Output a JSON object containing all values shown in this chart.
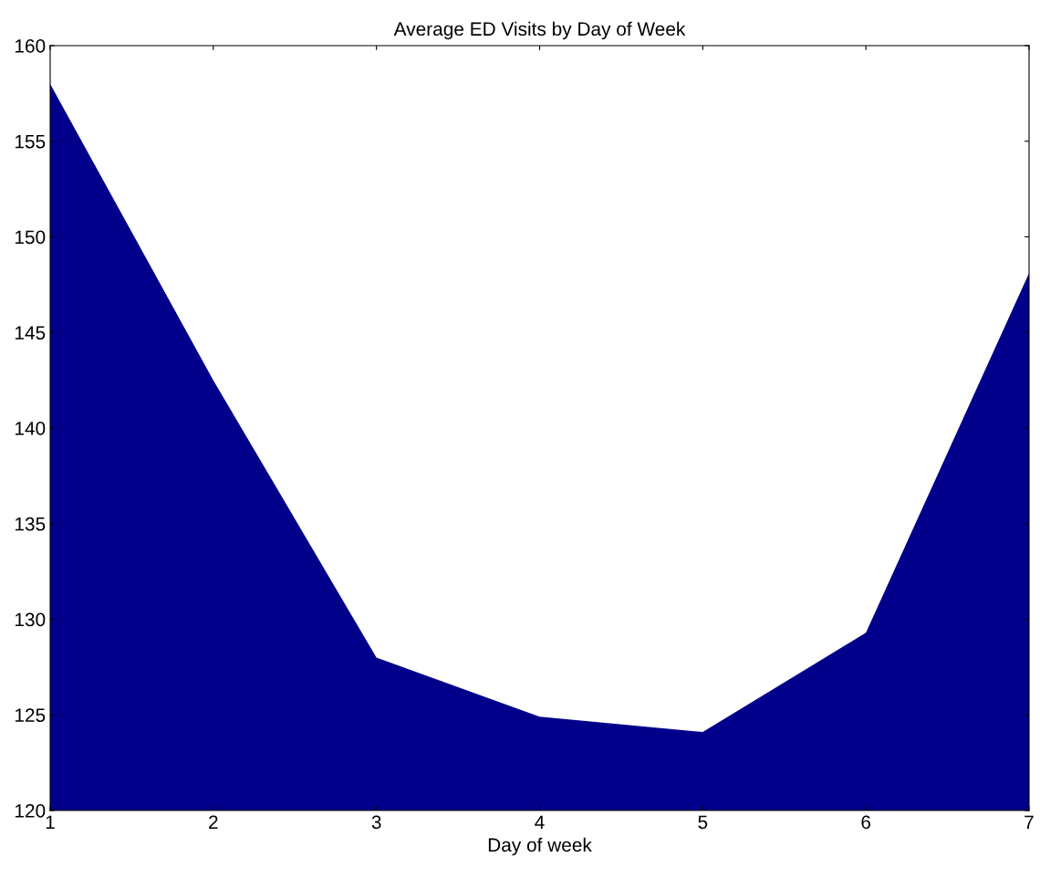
{
  "chart_data": {
    "type": "area",
    "title": "Average ED Visits by Day of Week",
    "xlabel": "Day of week",
    "x": [
      1,
      2,
      3,
      4,
      5,
      6,
      7
    ],
    "series": [
      {
        "color": "#00008b",
        "values": [
          158.0,
          142.5,
          128.0,
          124.9,
          124.1,
          129.3,
          148.1
        ]
      }
    ],
    "xlim": [
      1,
      7
    ],
    "xticks": [
      1,
      2,
      3,
      4,
      5,
      6,
      7
    ],
    "ylim": [
      120,
      160
    ],
    "yticks": [
      120,
      125,
      130,
      135,
      140,
      145,
      150,
      155,
      160
    ],
    "grid": false,
    "legend": false
  }
}
